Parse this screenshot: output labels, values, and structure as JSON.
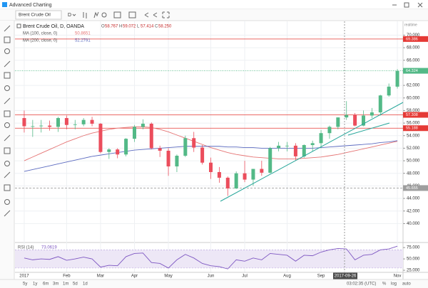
{
  "window": {
    "title": "Advanced Charting"
  },
  "toolbar": {
    "symbol": "Brent Crude Oil",
    "interval": "D"
  },
  "legend": {
    "ohlc": [
      {
        "label": "O",
        "value": "58.767"
      },
      {
        "label": "H",
        "value": "59.072"
      },
      {
        "label": "L",
        "value": "57.414"
      },
      {
        "label": "C",
        "value": "58.250"
      }
    ]
  },
  "realtime": "realtime",
  "crosshair": {
    "label": "2017-09-26"
  },
  "bottom_bar": {
    "ranges": [
      "5y",
      "1y",
      "6m",
      "3m",
      "1m",
      "5d",
      "1d"
    ],
    "clock": "03:02:35 (UTC)",
    "toggles": [
      "%",
      "log",
      "auto"
    ]
  },
  "chart_data": [
    {
      "type": "candlestick",
      "title": "Brent Crude Oil, D, OANDA",
      "categories": [
        "2017",
        null,
        null,
        null,
        null,
        "Feb",
        null,
        null,
        null,
        "Mar",
        null,
        null,
        null,
        "Apr",
        null,
        null,
        null,
        "May",
        null,
        null,
        null,
        null,
        "Jun",
        null,
        null,
        null,
        "Jul",
        null,
        null,
        null,
        null,
        "Aug",
        null,
        null,
        null,
        "Sep",
        null,
        null,
        null,
        null,
        null,
        null,
        null,
        null,
        "Nov"
      ],
      "open": [
        56.8,
        55.5,
        55.5,
        55.6,
        55.4,
        56.8,
        55.7,
        55.8,
        56.5,
        55.9,
        51.4,
        51.8,
        51.0,
        53.5,
        55.4,
        55.9,
        52.0,
        51.6,
        49.1,
        50.8,
        53.6,
        52.1,
        49.7,
        48.2,
        47.3,
        45.6,
        48.0,
        47.0,
        48.7,
        48.1,
        52.0,
        52.4,
        52.4,
        50.7,
        52.5,
        52.8,
        54.4,
        55.4,
        56.9,
        57.3,
        55.6,
        57.2,
        57.7,
        60.4,
        61.8
      ],
      "high": [
        58.0,
        56.5,
        56.5,
        56.4,
        57.0,
        57.2,
        56.5,
        56.8,
        57.0,
        56.0,
        52.0,
        52.0,
        53.6,
        55.7,
        56.6,
        56.1,
        52.4,
        52.0,
        51.0,
        54.0,
        54.6,
        52.5,
        50.5,
        49.0,
        47.5,
        48.3,
        50.0,
        48.7,
        50.0,
        52.2,
        53.0,
        53.0,
        52.8,
        52.6,
        53.2,
        54.9,
        55.6,
        56.9,
        59.5,
        57.6,
        58.0,
        58.4,
        60.5,
        62.3,
        64.6
      ],
      "low": [
        54.5,
        53.8,
        54.5,
        54.8,
        54.6,
        55.0,
        55.0,
        55.5,
        55.5,
        51.2,
        50.3,
        50.4,
        50.7,
        53.0,
        55.0,
        51.8,
        50.6,
        47.6,
        48.2,
        50.6,
        51.4,
        49.4,
        47.1,
        46.5,
        44.4,
        45.5,
        46.6,
        46.0,
        47.6,
        48.0,
        51.5,
        51.5,
        50.0,
        50.5,
        51.5,
        52.0,
        53.5,
        55.0,
        56.5,
        55.5,
        55.5,
        56.8,
        57.2,
        60.2,
        61.5
      ],
      "close": [
        55.5,
        55.5,
        55.6,
        55.4,
        56.8,
        55.7,
        55.8,
        56.5,
        55.9,
        51.4,
        51.8,
        51.0,
        53.5,
        55.4,
        55.9,
        52.0,
        51.6,
        49.1,
        50.8,
        53.6,
        52.1,
        49.7,
        48.2,
        47.3,
        45.6,
        48.0,
        47.0,
        48.7,
        48.1,
        52.0,
        52.4,
        52.4,
        50.7,
        52.5,
        52.8,
        54.4,
        55.4,
        56.9,
        57.3,
        55.6,
        57.2,
        57.7,
        60.4,
        61.8,
        64.3
      ],
      "up_color": "#53b987",
      "down_color": "#eb4d5c",
      "series": [
        {
          "name": "MA (100, close, 0)",
          "legend_value": "50.8651",
          "color": "#e57373",
          "values": [
            50.0,
            50.6,
            51.2,
            51.8,
            52.4,
            53.0,
            53.5,
            54.0,
            54.4,
            54.7,
            55.0,
            55.2,
            55.3,
            55.4,
            55.4,
            55.3,
            55.0,
            54.6,
            54.1,
            53.6,
            53.1,
            52.6,
            52.1,
            51.7,
            51.3,
            51.0,
            50.8,
            50.6,
            50.5,
            50.4,
            50.3,
            50.3,
            50.3,
            50.4,
            50.5,
            50.6,
            50.8,
            51.0,
            51.3,
            51.6,
            51.9,
            52.2,
            52.5,
            52.8,
            53.1
          ]
        },
        {
          "name": "MA (200, close, 0)",
          "legend_value": "52.2791",
          "color": "#5c6bc0",
          "values": [
            48.3,
            48.6,
            48.9,
            49.2,
            49.5,
            49.8,
            50.1,
            50.4,
            50.7,
            50.9,
            51.1,
            51.3,
            51.5,
            51.7,
            51.8,
            51.9,
            52.0,
            52.1,
            52.2,
            52.3,
            52.3,
            52.3,
            52.3,
            52.3,
            52.2,
            52.2,
            52.1,
            52.1,
            52.0,
            52.0,
            52.0,
            52.0,
            52.0,
            52.0,
            52.0,
            52.1,
            52.2,
            52.3,
            52.4,
            52.5,
            52.6,
            52.7,
            52.9,
            53.0,
            53.2
          ]
        }
      ],
      "hlines": [
        {
          "value": 69.386,
          "color": "#e53935",
          "style": "solid"
        },
        {
          "value": 64.324,
          "color": "#53b987",
          "style": "dotted"
        },
        {
          "value": 57.308,
          "color": "#e53935",
          "style": "solid"
        },
        {
          "value": 55.188,
          "color": "#e53935",
          "style": "solid"
        },
        {
          "value": 45.655,
          "color": "#9e9e9e",
          "style": "dashed"
        }
      ],
      "ylim": [
        37.1,
        72.2
      ],
      "yticks": [
        {
          "value": 40,
          "label": "40.000"
        },
        {
          "value": 42,
          "label": "42.000"
        },
        {
          "value": 44,
          "label": "44.000"
        },
        {
          "value": 46,
          "label": "46.000"
        },
        {
          "value": 48,
          "label": "48.000"
        },
        {
          "value": 50,
          "label": "50.000"
        },
        {
          "value": 52,
          "label": "52.000"
        },
        {
          "value": 54,
          "label": "54.000"
        },
        {
          "value": 56,
          "label": "56.000"
        },
        {
          "value": 58,
          "label": "58.000"
        },
        {
          "value": 60,
          "label": "60.000"
        },
        {
          "value": 62,
          "label": "62.000"
        },
        {
          "value": 66,
          "label": "66.000"
        },
        {
          "value": 68,
          "label": "68.000"
        },
        {
          "value": 70,
          "label": "70.000"
        }
      ],
      "grid": true
    },
    {
      "type": "line",
      "title": "RSI (14)",
      "legend_value": "73.0619",
      "color": "#7e57c2",
      "band": [
        30,
        70
      ],
      "values": [
        52,
        48,
        50,
        49,
        55,
        47,
        50,
        54,
        50,
        32,
        36,
        35,
        55,
        62,
        63,
        42,
        40,
        30,
        48,
        60,
        52,
        40,
        35,
        33,
        28,
        48,
        45,
        52,
        48,
        62,
        60,
        58,
        45,
        58,
        57,
        65,
        70,
        73,
        72,
        48,
        58,
        60,
        70,
        72,
        78
      ],
      "ylim": [
        22,
        83
      ],
      "yticks": [
        {
          "value": 25,
          "label": "25.000"
        },
        {
          "value": 50,
          "label": "50.000"
        },
        {
          "value": 75,
          "label": "75.000"
        }
      ]
    }
  ]
}
